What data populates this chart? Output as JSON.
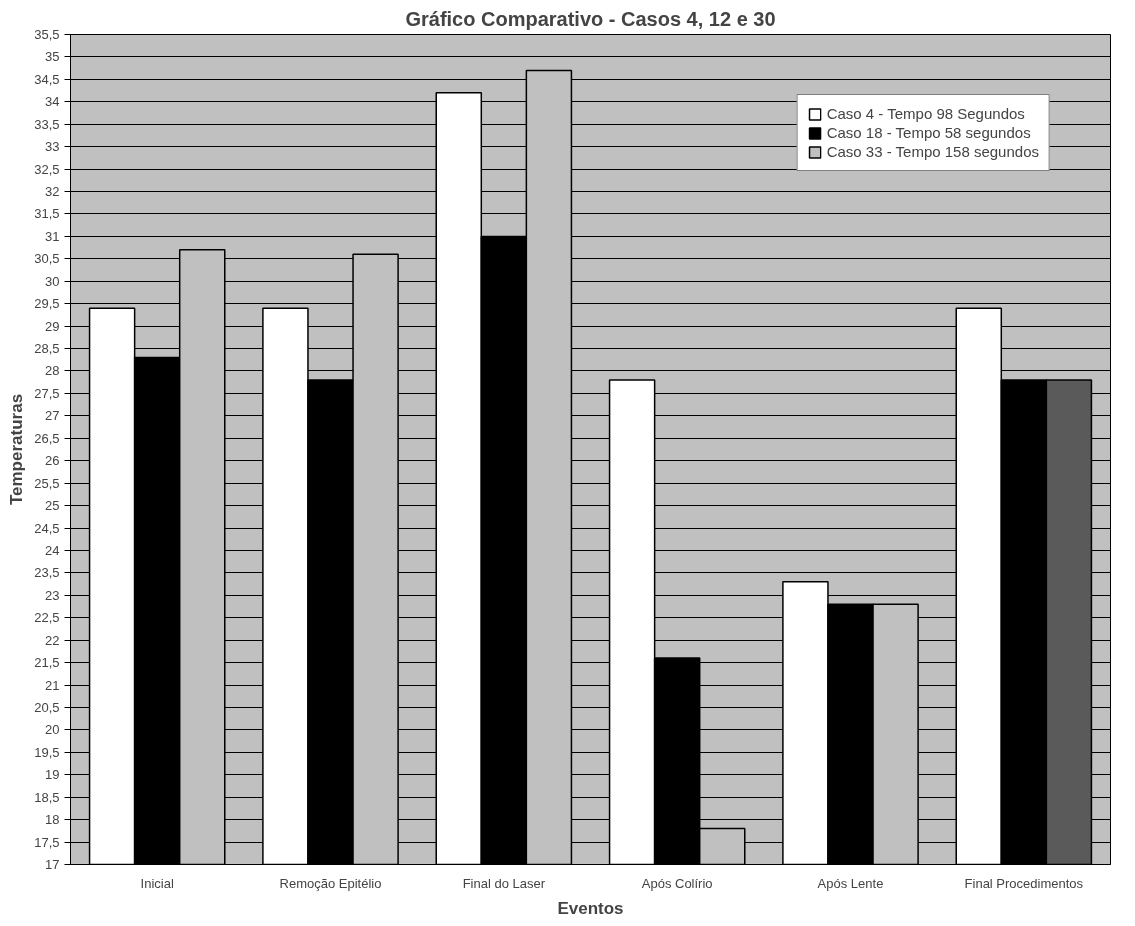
{
  "chart_data": {
    "type": "bar",
    "title": "Gráfico Comparativo - Casos 4, 12 e 30",
    "xlabel": "Eventos",
    "ylabel": "Temperaturas",
    "categories": [
      "Inicial",
      "Remoção Epitélio",
      "Final do Laser",
      "Após Colírio",
      "Após Lente",
      "Final Procedimentos"
    ],
    "series": [
      {
        "name": "Caso 4 - Tempo 98 Segundos",
        "color": "#ffffff",
        "values": [
          29.4,
          29.4,
          34.2,
          27.8,
          23.3,
          29.4
        ]
      },
      {
        "name": "Caso 18 - Tempo 58 segundos",
        "color": "#000000",
        "values": [
          28.3,
          27.8,
          31.0,
          21.6,
          22.8,
          27.8
        ]
      },
      {
        "name": "Caso 33 - Tempo 158 segundos",
        "color": "#c0c0c0",
        "colors": [
          "#c0c0c0",
          "#c0c0c0",
          "#c0c0c0",
          "#c0c0c0",
          "#c0c0c0",
          "#5a5a5a"
        ],
        "values": [
          30.7,
          30.6,
          34.7,
          17.8,
          22.8,
          27.8
        ]
      }
    ],
    "ylim": [
      17,
      35.5
    ],
    "yticks": [
      17,
      {
        "value": 17.5,
        "label": "17,5"
      },
      18,
      {
        "value": 18.5,
        "label": "18,5"
      },
      19,
      {
        "value": 19.5,
        "label": "19,5"
      },
      20,
      {
        "value": 20.5,
        "label": "20,5"
      },
      21,
      {
        "value": 21.5,
        "label": "21,5"
      },
      22,
      {
        "value": 22.5,
        "label": "22,5"
      },
      23,
      {
        "value": 23.5,
        "label": "23,5"
      },
      24,
      {
        "value": 24.5,
        "label": "24,5"
      },
      25,
      {
        "value": 25.5,
        "label": "25,5"
      },
      26,
      {
        "value": 26.5,
        "label": "26,5"
      },
      27,
      {
        "value": 27.5,
        "label": "27,5"
      },
      28,
      {
        "value": 28.5,
        "label": "28,5"
      },
      29,
      {
        "value": 29.5,
        "label": "29,5"
      },
      30,
      {
        "value": 30.5,
        "label": "30,5"
      },
      31,
      {
        "value": 31.5,
        "label": "31,5"
      },
      32,
      {
        "value": 32.5,
        "label": "32,5"
      },
      33,
      {
        "value": 33.5,
        "label": "33,5"
      },
      34,
      {
        "value": 34.5,
        "label": "34,5"
      },
      35,
      {
        "value": 35.5,
        "label": "35,5"
      }
    ],
    "grid": "y",
    "legend": "top right"
  }
}
